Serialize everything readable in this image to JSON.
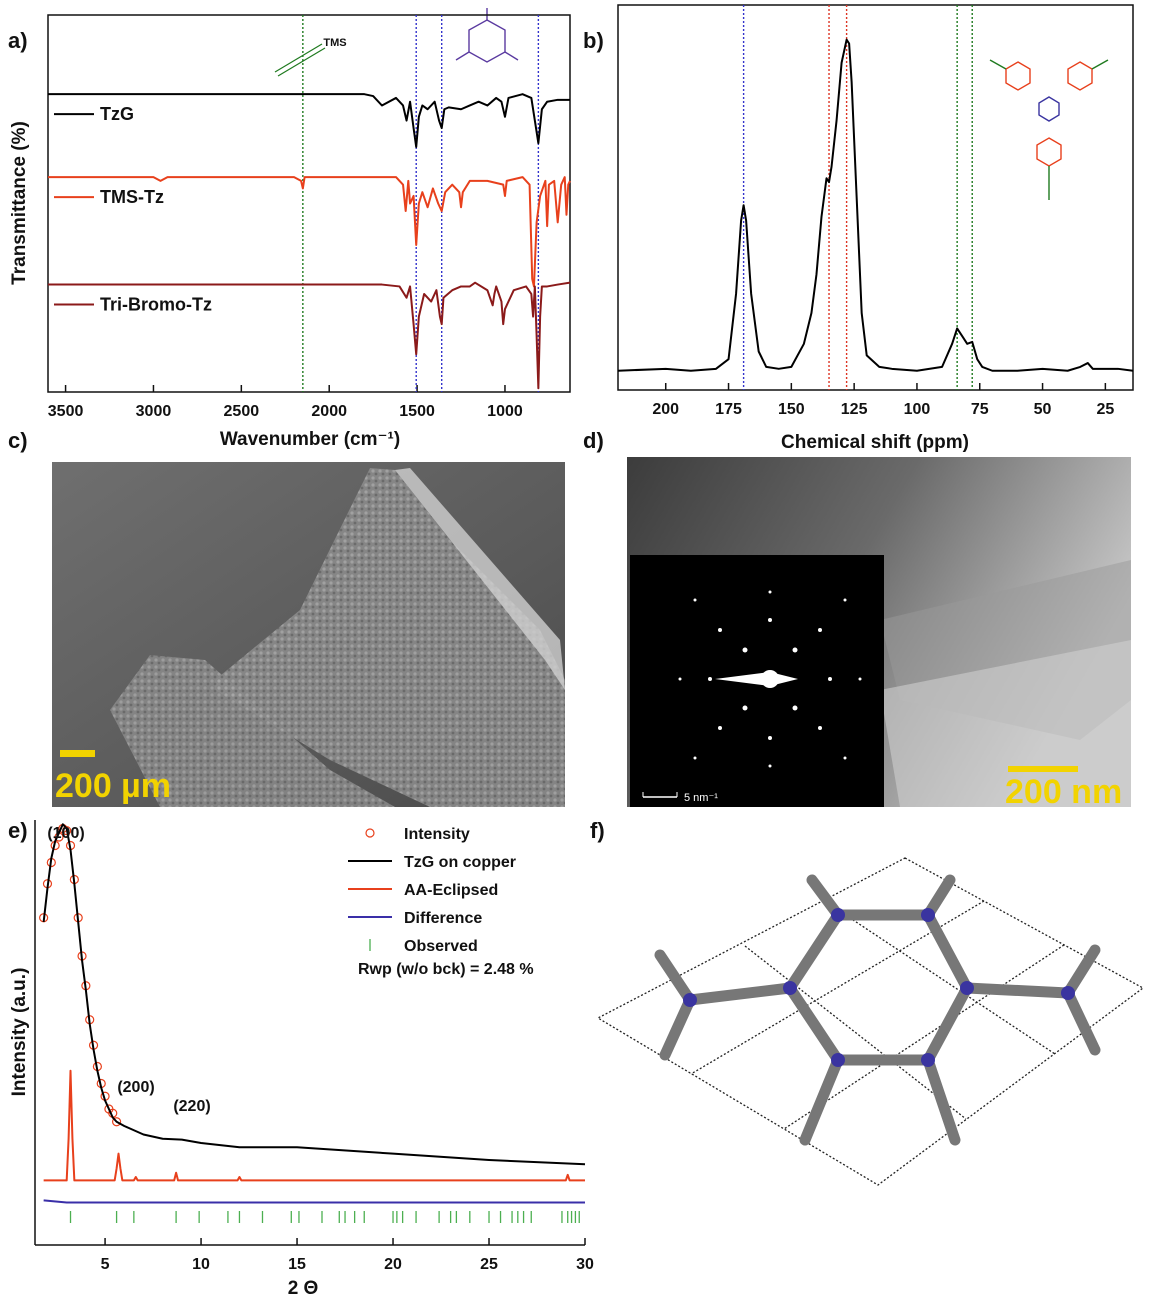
{
  "chart_data": [
    {
      "type": "line",
      "label": "a)",
      "x_label": "Wavenumber (cm⁻¹)",
      "y_label": "Transmittance (%)",
      "xlim": [
        3600,
        630
      ],
      "xticks": [
        3500,
        3000,
        2500,
        2000,
        1500,
        1000
      ],
      "ylim": [
        0,
        100
      ],
      "annotations": [
        "TMS"
      ],
      "vlines": [
        {
          "x": 2150,
          "color": "#1f7a1f"
        },
        {
          "x": 1505,
          "color": "#3333cc"
        },
        {
          "x": 1360,
          "color": "#3333cc"
        },
        {
          "x": 810,
          "color": "#3333cc"
        }
      ],
      "series": [
        {
          "name": "TzG",
          "color": "#000000",
          "x": [
            3600,
            1800,
            1750,
            1700,
            1620,
            1580,
            1560,
            1540,
            1520,
            1505,
            1490,
            1470,
            1440,
            1400,
            1375,
            1360,
            1345,
            1320,
            1250,
            1200,
            1150,
            1100,
            1050,
            1020,
            1000,
            980,
            900,
            850,
            830,
            810,
            790,
            760,
            700,
            630
          ],
          "values": [
            79,
            79,
            78.5,
            76,
            78,
            76,
            72,
            77,
            70,
            65,
            73,
            76,
            75,
            77,
            72,
            70,
            75,
            75.5,
            75,
            76,
            77,
            76,
            78,
            77,
            73,
            78,
            79,
            78,
            72,
            66,
            75,
            77,
            77.5,
            77.5
          ]
        },
        {
          "name": "TMS-Tz",
          "color": "#e8401c",
          "x": [
            3600,
            3000,
            2960,
            2920,
            2200,
            2160,
            2150,
            2140,
            1620,
            1580,
            1565,
            1550,
            1540,
            1520,
            1505,
            1490,
            1470,
            1440,
            1410,
            1380,
            1360,
            1340,
            1300,
            1260,
            1250,
            1240,
            1200,
            1100,
            1010,
            1000,
            990,
            900,
            860,
            845,
            835,
            820,
            800,
            770,
            760,
            750,
            720,
            700,
            680,
            660,
            650,
            640,
            630
          ],
          "values": [
            57,
            57,
            56,
            57,
            57,
            56,
            54,
            57,
            57,
            55,
            48,
            56,
            50,
            52,
            39,
            50,
            53,
            49,
            54,
            50,
            48,
            53,
            55,
            53,
            49,
            53,
            56,
            56,
            55,
            52,
            56,
            57,
            55,
            30,
            28,
            45,
            52,
            56,
            44,
            55,
            56,
            45,
            55,
            57,
            47,
            55,
            56
          ]
        },
        {
          "name": "Tri-Bromo-Tz",
          "color": "#8b1a1a",
          "x": [
            3600,
            1700,
            1600,
            1560,
            1540,
            1520,
            1505,
            1490,
            1460,
            1420,
            1390,
            1370,
            1360,
            1350,
            1300,
            1250,
            1200,
            1170,
            1100,
            1070,
            1060,
            1050,
            1020,
            1010,
            1000,
            950,
            880,
            850,
            840,
            830,
            820,
            810,
            800,
            790,
            760,
            700,
            630
          ],
          "values": [
            28.5,
            28.5,
            28,
            25,
            28,
            18,
            10,
            20,
            26,
            24,
            27,
            20,
            18,
            25,
            27,
            28,
            28,
            29,
            27,
            23,
            26,
            28,
            24,
            18,
            22,
            27,
            28,
            26,
            20,
            28,
            15,
            1,
            20,
            28,
            28,
            28.5,
            29
          ]
        }
      ]
    },
    {
      "type": "line",
      "label": "b)",
      "x_label": "Chemical shift (ppm)",
      "xlim": [
        219,
        14
      ],
      "xticks": [
        200,
        175,
        150,
        125,
        100,
        75,
        50,
        25
      ],
      "ylim": [
        0,
        100
      ],
      "vlines": [
        {
          "x": 169,
          "color": "#3333cc"
        },
        {
          "x": 135,
          "color": "#dd3322"
        },
        {
          "x": 128,
          "color": "#dd3322"
        },
        {
          "x": 84,
          "color": "#1f7a1f"
        },
        {
          "x": 78,
          "color": "#1f7a1f"
        }
      ],
      "series": [
        {
          "name": null,
          "color": "#000000",
          "x": [
            219,
            200,
            190,
            180,
            175,
            172,
            170,
            169,
            168,
            166,
            163,
            160,
            155,
            150,
            145,
            142,
            140,
            138,
            136,
            135,
            134,
            132,
            130,
            128,
            127,
            126,
            124,
            122,
            120,
            115,
            110,
            100,
            90,
            86,
            84,
            82,
            80,
            78,
            76,
            74,
            70,
            60,
            50,
            40,
            35,
            32,
            30,
            20,
            14
          ],
          "values": [
            5,
            5.5,
            5,
            5.5,
            8,
            25,
            44,
            48,
            44,
            25,
            10,
            6,
            5.5,
            6,
            12,
            20,
            30,
            45,
            55,
            54,
            58,
            70,
            85,
            91,
            90,
            80,
            50,
            20,
            9,
            6,
            5.5,
            5,
            6,
            12,
            16,
            14,
            12,
            12.5,
            8,
            6,
            5,
            5,
            5.5,
            5,
            6,
            7,
            5.5,
            5.5,
            5
          ]
        }
      ]
    },
    {
      "type": "line",
      "label": "e)",
      "x_label": "2 Θ",
      "y_label": "Intensity (a.u.)",
      "xlim": [
        1.35,
        30
      ],
      "xticks": [
        5,
        10,
        15,
        20,
        25,
        30
      ],
      "ylim": [
        0,
        100
      ],
      "annotations": [
        "(100)",
        "(200)",
        "(220)"
      ],
      "fit_label": "Rwp (w/o bck) = 2.48 %",
      "series": [
        {
          "name": "Intensity",
          "color": "#e8401c",
          "marker": "circle",
          "x": [
            1.8,
            2.0,
            2.2,
            2.4,
            2.6,
            2.8,
            3.0,
            3.2,
            3.4,
            3.6,
            3.8,
            4.0,
            4.2,
            4.4,
            4.6,
            4.8,
            5.0,
            5.2,
            5.4,
            5.6
          ],
          "values": [
            77,
            85,
            90,
            94,
            96,
            98,
            97.5,
            94,
            86,
            77,
            68,
            61,
            53,
            47,
            42,
            38,
            35,
            32,
            31,
            29
          ]
        },
        {
          "name": "TzG on copper",
          "color": "#000000",
          "x": [
            1.8,
            2.0,
            2.2,
            2.4,
            2.6,
            2.8,
            3.0,
            3.2,
            3.4,
            3.6,
            3.8,
            4.0,
            4.2,
            4.4,
            4.6,
            4.8,
            5.0,
            5.2,
            5.4,
            5.6,
            6,
            7,
            8,
            9,
            10,
            12,
            15,
            20,
            25,
            30
          ],
          "values": [
            76,
            84,
            91,
            95,
            97,
            99,
            98,
            93,
            85,
            76,
            67,
            60,
            52,
            46,
            41,
            37,
            34,
            32,
            30,
            29,
            28,
            26,
            25,
            24.8,
            24,
            23,
            23,
            21.5,
            20,
            19
          ]
        },
        {
          "name": "AA-Eclipsed",
          "color": "#e8401c",
          "x": [
            1.8,
            3.0,
            3.1,
            3.2,
            3.3,
            3.4,
            5.5,
            5.6,
            5.7,
            5.8,
            5.9,
            6.5,
            6.6,
            6.7,
            8.6,
            8.7,
            8.8,
            11.9,
            12.0,
            12.1,
            29.0,
            29.1,
            29.2,
            30
          ],
          "values": [
            15.2,
            15.2,
            25,
            41,
            25,
            15.2,
            15.2,
            18,
            21.5,
            18,
            15.2,
            15.2,
            16,
            15.2,
            15.2,
            17,
            15.2,
            15.2,
            16,
            15.2,
            15.2,
            16.5,
            15.2,
            15.2
          ]
        },
        {
          "name": "Difference",
          "color": "#3a2fa8",
          "x": [
            1.8,
            3,
            5,
            30
          ],
          "values": [
            10.5,
            10,
            10,
            10
          ]
        },
        {
          "name": "Observed",
          "color": "#4caf50",
          "marker": "tick",
          "x": [
            3.2,
            5.6,
            6.5,
            8.7,
            9.9,
            11.4,
            12.0,
            13.2,
            14.7,
            15.1,
            16.3,
            17.2,
            17.5,
            18.0,
            18.5,
            20.0,
            20.2,
            20.5,
            21.2,
            22.4,
            23.0,
            23.3,
            24.0,
            25.0,
            25.6,
            26.2,
            26.5,
            26.8,
            27.2,
            28.8,
            29.1,
            29.3,
            29.5,
            29.7
          ]
        }
      ]
    }
  ],
  "images": [
    {
      "label": "c)",
      "scale_bar": "200 µm"
    },
    {
      "label": "d)",
      "inset_scale_bar": "5 nm⁻¹",
      "scale_bar": "200 nm"
    }
  ],
  "diagram": {
    "label": "f)"
  }
}
